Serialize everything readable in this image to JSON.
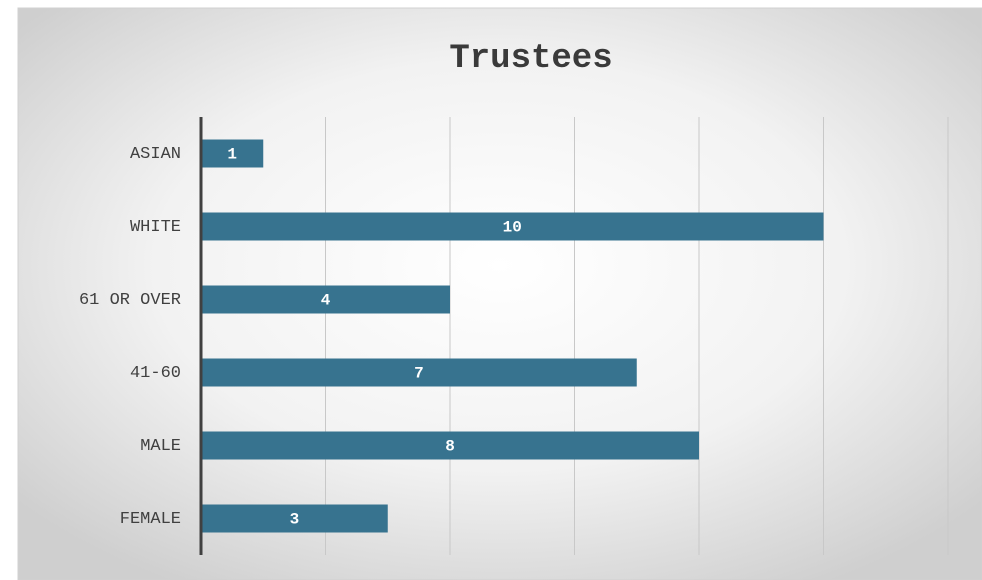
{
  "chart_data": {
    "type": "bar",
    "orientation": "horizontal",
    "title": "Trustees",
    "categories": [
      "ASIAN",
      "WHITE",
      "61 OR OVER",
      "41-60",
      "MALE",
      "FEMALE"
    ],
    "values": [
      1,
      10,
      4,
      7,
      8,
      3
    ],
    "color": "#37738f",
    "xlim": [
      0,
      12
    ],
    "xticks": [
      0,
      2,
      4,
      6,
      8,
      10,
      12
    ],
    "grid": true
  }
}
